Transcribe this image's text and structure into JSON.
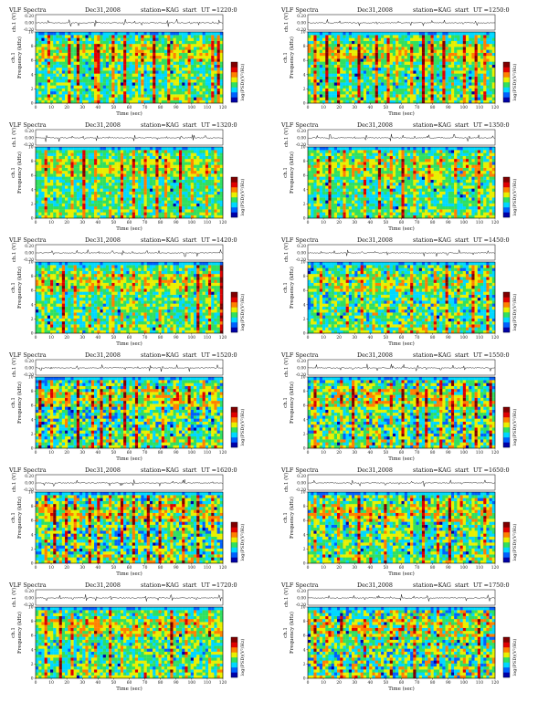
{
  "page": {
    "title": "VLF Spectra station KAG"
  },
  "common": {
    "prefix": "VLF Spectra",
    "date": "Dec31,2008",
    "station": "station=KAG",
    "start_label": "start",
    "ch_label": "ch.1 (V)",
    "ch_ticks": [
      "0.20",
      "0.00",
      "-0.20"
    ],
    "ylabel_top": "ch.1",
    "ylabel": "Frequency (kHz)",
    "xlabel": "Time (sec)",
    "colorbar_label": "log(PSD)(V²/Hz)",
    "colorbar_colors": [
      "#0000a8",
      "#0060ff",
      "#00d8ff",
      "#30e060",
      "#e8f000",
      "#ff8000",
      "#e00000",
      "#800000"
    ]
  },
  "chart_data": [
    {
      "type": "heatmap",
      "title": "VLF Spectra   Dec31,2008   station=KAG   start  UT =1220:0",
      "time_label": "UT =1220:0",
      "xlabel": "Time (sec)",
      "ylabel": "Frequency (kHz)",
      "xlim": [
        0,
        120
      ],
      "ylim": [
        0,
        10
      ],
      "xticks": [
        0,
        10,
        20,
        30,
        40,
        50,
        60,
        70,
        80,
        90,
        100,
        110,
        120
      ],
      "yticks": [
        0,
        2,
        4,
        6,
        8,
        10
      ],
      "spike_times": [
        8,
        22,
        27,
        38,
        40,
        50,
        57,
        64,
        68,
        76,
        85,
        90,
        99,
        105,
        113,
        117
      ],
      "intensity": 1.0,
      "noise": 0.45
    },
    {
      "type": "heatmap",
      "title": "VLF Spectra   Dec31,2008   station=KAG   start  UT =1250:0",
      "time_label": "UT =1250:0",
      "xlabel": "Time (sec)",
      "ylabel": "Frequency (kHz)",
      "xlim": [
        0,
        120
      ],
      "ylim": [
        0,
        10
      ],
      "xticks": [
        0,
        10,
        20,
        30,
        40,
        50,
        60,
        70,
        80,
        90,
        100,
        110,
        120
      ],
      "yticks": [
        0,
        2,
        4,
        6,
        8,
        10
      ],
      "spike_times": [
        5,
        12,
        20,
        28,
        33,
        44,
        52,
        58,
        66,
        74,
        80,
        87,
        92,
        100,
        108,
        114
      ],
      "intensity": 1.05,
      "noise": 0.45
    },
    {
      "type": "heatmap",
      "title": "VLF Spectra   Dec31,2008   station=KAG   start  UT =1320:0",
      "time_label": "UT =1320:0",
      "xlabel": "Time (sec)",
      "ylabel": "Frequency (kHz)",
      "xlim": [
        0,
        120
      ],
      "ylim": [
        0,
        10
      ],
      "xticks": [
        0,
        10,
        20,
        30,
        40,
        50,
        60,
        70,
        80,
        90,
        100,
        110,
        120
      ],
      "yticks": [
        0,
        2,
        4,
        6,
        8,
        10
      ],
      "spike_times": [
        7,
        15,
        24,
        31,
        39,
        47,
        55,
        63,
        70,
        78,
        84,
        93,
        101,
        109,
        116
      ],
      "intensity": 0.9,
      "noise": 0.4
    },
    {
      "type": "heatmap",
      "title": "VLF Spectra   Dec31,2008   station=KAG   start  UT =1350:0",
      "time_label": "UT =1350:0",
      "xlabel": "Time (sec)",
      "ylabel": "Frequency (kHz)",
      "xlim": [
        0,
        120
      ],
      "ylim": [
        0,
        10
      ],
      "xticks": [
        0,
        10,
        20,
        30,
        40,
        50,
        60,
        70,
        80,
        90,
        100,
        110,
        120
      ],
      "yticks": [
        0,
        2,
        4,
        6,
        8,
        10
      ],
      "spike_times": [
        6,
        14,
        23,
        30,
        37,
        46,
        53,
        61,
        69,
        77,
        86,
        94,
        103,
        110,
        118
      ],
      "intensity": 0.9,
      "noise": 0.45
    },
    {
      "type": "heatmap",
      "title": "VLF Spectra   Dec31,2008   station=KAG   start  UT =1420:0",
      "time_label": "UT =1420:0",
      "xlabel": "Time (sec)",
      "ylabel": "Frequency (kHz)",
      "xlim": [
        0,
        120
      ],
      "ylim": [
        0,
        10
      ],
      "xticks": [
        0,
        10,
        20,
        30,
        40,
        50,
        60,
        70,
        80,
        90,
        100,
        110,
        120
      ],
      "yticks": [
        0,
        2,
        4,
        6,
        8,
        10
      ],
      "spike_times": [
        4,
        11,
        18,
        26,
        34,
        41,
        49,
        56,
        62,
        71,
        79,
        88,
        96,
        104,
        112,
        119
      ],
      "intensity": 1.0,
      "noise": 0.45
    },
    {
      "type": "heatmap",
      "title": "VLF Spectra   Dec31,2008   station=KAG   start  UT =1450:0",
      "time_label": "UT =1450:0",
      "xlabel": "Time (sec)",
      "ylabel": "Frequency (kHz)",
      "xlim": [
        0,
        120
      ],
      "ylim": [
        0,
        10
      ],
      "xticks": [
        0,
        10,
        20,
        30,
        40,
        50,
        60,
        70,
        80,
        90,
        100,
        110,
        120
      ],
      "yticks": [
        0,
        2,
        4,
        6,
        8,
        10
      ],
      "spike_times": [
        9,
        17,
        25,
        35,
        43,
        51,
        60,
        67,
        75,
        82,
        89,
        97,
        106,
        115
      ],
      "intensity": 0.85,
      "noise": 0.55
    },
    {
      "type": "heatmap",
      "title": "VLF Spectra   Dec31,2008   station=KAG   start  UT =1520:0",
      "time_label": "UT =1520:0",
      "xlabel": "Time (sec)",
      "ylabel": "Frequency (kHz)",
      "xlim": [
        0,
        120
      ],
      "ylim": [
        0,
        10
      ],
      "xticks": [
        0,
        10,
        20,
        30,
        40,
        50,
        60,
        70,
        80,
        90,
        100,
        110,
        120
      ],
      "yticks": [
        0,
        2,
        4,
        6,
        8,
        10
      ],
      "spike_times": [
        3,
        10,
        19,
        27,
        36,
        42,
        48,
        57,
        65,
        73,
        81,
        90,
        98,
        107,
        116
      ],
      "intensity": 1.0,
      "noise": 0.6
    },
    {
      "type": "heatmap",
      "title": "VLF Spectra   Dec31,2008   station=KAG   start  UT =1550:0",
      "time_label": "UT =1550:0",
      "xlabel": "Time (sec)",
      "ylabel": "Frequency (kHz)",
      "xlim": [
        0,
        120
      ],
      "ylim": [
        0,
        10
      ],
      "xticks": [
        0,
        10,
        20,
        30,
        40,
        50,
        60,
        70,
        80,
        90,
        100,
        110,
        120
      ],
      "yticks": [
        0,
        2,
        4,
        6,
        8,
        10
      ],
      "spike_times": [
        5,
        13,
        21,
        29,
        38,
        45,
        54,
        61,
        70,
        76,
        85,
        93,
        100,
        108,
        117
      ],
      "intensity": 1.0,
      "noise": 0.6
    },
    {
      "type": "heatmap",
      "title": "VLF Spectra   Dec31,2008   station=KAG   start  UT =1620:0",
      "time_label": "UT =1620:0",
      "xlabel": "Time (sec)",
      "ylabel": "Frequency (kHz)",
      "xlim": [
        0,
        120
      ],
      "ylim": [
        0,
        10
      ],
      "xticks": [
        0,
        10,
        20,
        30,
        40,
        50,
        60,
        70,
        80,
        90,
        100,
        110,
        120
      ],
      "yticks": [
        0,
        2,
        4,
        6,
        8,
        10
      ],
      "spike_times": [
        6,
        12,
        20,
        26,
        35,
        40,
        47,
        55,
        63,
        72,
        80,
        88,
        95,
        104,
        113
      ],
      "intensity": 1.05,
      "noise": 0.65
    },
    {
      "type": "heatmap",
      "title": "VLF Spectra   Dec31,2008   station=KAG   start  UT =1650:0",
      "time_label": "UT =1650:0",
      "xlabel": "Time (sec)",
      "ylabel": "Frequency (kHz)",
      "xlim": [
        0,
        120
      ],
      "ylim": [
        0,
        10
      ],
      "xticks": [
        0,
        10,
        20,
        30,
        40,
        50,
        60,
        70,
        80,
        90,
        100,
        110,
        120
      ],
      "yticks": [
        0,
        2,
        4,
        6,
        8,
        10
      ],
      "spike_times": [
        4,
        11,
        19,
        28,
        33,
        41,
        50,
        58,
        66,
        74,
        83,
        91,
        99,
        107,
        114
      ],
      "intensity": 0.95,
      "noise": 0.55
    },
    {
      "type": "heatmap",
      "title": "VLF Spectra   Dec31,2008   station=KAG   start  UT =1720:0",
      "time_label": "UT =1720:0",
      "xlabel": "Time (sec)",
      "ylabel": "Frequency (kHz)",
      "xlim": [
        0,
        120
      ],
      "ylim": [
        0,
        10
      ],
      "xticks": [
        0,
        10,
        20,
        30,
        40,
        50,
        60,
        70,
        80,
        90,
        100,
        110,
        120
      ],
      "yticks": [
        0,
        2,
        4,
        6,
        8,
        10
      ],
      "spike_times": [
        7,
        16,
        24,
        32,
        39,
        48,
        56,
        64,
        71,
        79,
        87,
        96,
        103,
        111,
        118
      ],
      "intensity": 0.95,
      "noise": 0.5
    },
    {
      "type": "heatmap",
      "title": "VLF Spectra   Dec31,2008   station=KAG   start  UT =1750:0",
      "time_label": "UT =1750:0",
      "xlabel": "Time (sec)",
      "ylabel": "Frequency (kHz)",
      "xlim": [
        0,
        120
      ],
      "ylim": [
        0,
        10
      ],
      "xticks": [
        0,
        10,
        20,
        30,
        40,
        50,
        60,
        70,
        80,
        90,
        100,
        110,
        120
      ],
      "yticks": [
        0,
        2,
        4,
        6,
        8,
        10
      ],
      "spike_times": [
        5,
        13,
        22,
        30,
        36,
        45,
        53,
        60,
        68,
        77,
        84,
        92,
        101,
        110,
        116
      ],
      "intensity": 0.9,
      "noise": 0.7
    }
  ]
}
